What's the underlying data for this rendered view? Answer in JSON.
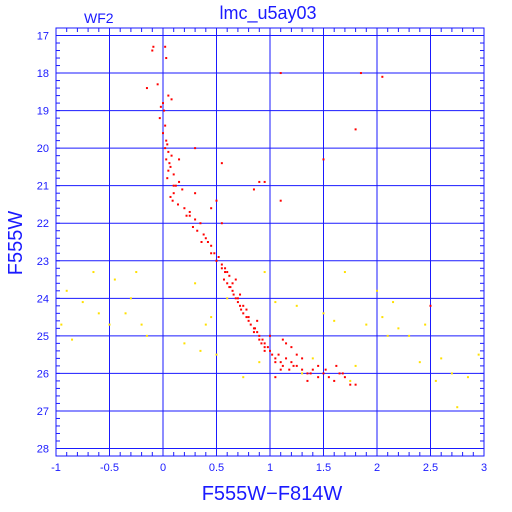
{
  "chart_data": {
    "type": "scatter",
    "title": "lmc_u5ay03",
    "subtitle": "WF2",
    "xlabel": "F555W−F814W",
    "ylabel": "F555W",
    "xlim": [
      -1,
      3
    ],
    "ylim": [
      28.2,
      16.8
    ],
    "y_inverted": true,
    "xticks": [
      -1,
      -0.5,
      0,
      0.5,
      1,
      1.5,
      2,
      2.5,
      3
    ],
    "xtick_labels": [
      "-1",
      "-0.5",
      "0",
      "0.5",
      "1",
      "1.5",
      "2",
      "2.5",
      "3"
    ],
    "yticks": [
      17,
      18,
      19,
      20,
      21,
      22,
      23,
      24,
      25,
      26,
      27,
      28
    ],
    "ytick_labels": [
      "17",
      "18",
      "19",
      "20",
      "21",
      "22",
      "23",
      "24",
      "25",
      "26",
      "27",
      "28"
    ],
    "grid": true,
    "colors": {
      "axes": "#1a1aff",
      "grid": "#1a1aff",
      "main_points": "#ff0000",
      "faint_points": "#ffe000"
    },
    "series": [
      {
        "color": "#ff0000",
        "x": [
          -0.1,
          -0.09,
          0.02,
          0.03,
          -0.15,
          -0.05,
          0.05,
          0.08,
          0.0,
          -0.02,
          0.01,
          -0.03,
          0.02,
          0.0,
          0.03,
          0.02,
          0.05,
          0.04,
          0.03,
          0.06,
          0.08,
          0.05,
          0.07,
          0.1,
          0.04,
          0.15,
          0.12,
          0.1,
          0.18,
          0.07,
          0.09,
          0.14,
          0.2,
          0.25,
          0.22,
          0.3,
          0.35,
          0.28,
          0.32,
          0.38,
          0.4,
          0.42,
          0.45,
          0.36,
          0.48,
          0.5,
          0.52,
          0.55,
          0.58,
          0.6,
          0.62,
          0.57,
          0.6,
          0.63,
          0.65,
          0.66,
          0.68,
          0.7,
          0.72,
          0.73,
          0.75,
          0.78,
          0.8,
          0.82,
          0.85,
          0.88,
          0.9,
          0.93,
          0.95,
          0.98,
          1.0,
          1.02,
          1.05,
          1.08,
          1.1,
          1.12,
          1.15,
          1.18,
          1.2,
          1.25,
          1.3,
          1.35,
          1.4,
          1.45,
          1.5,
          1.55,
          1.6,
          1.65,
          1.7,
          1.75,
          0.85,
          0.9,
          0.95,
          1.0,
          0.7,
          0.75,
          0.8,
          1.15,
          1.25,
          0.55,
          0.5,
          0.65,
          0.45,
          1.1,
          1.3,
          1.45,
          0.72,
          0.68,
          0.62,
          0.58,
          1.05,
          1.2,
          1.38,
          1.52,
          0.92,
          0.86,
          0.78,
          1.12,
          1.22,
          1.35,
          1.05,
          0.95,
          0.88,
          1.68,
          1.8,
          1.62,
          0.15,
          0.25,
          0.3,
          0.5,
          0.55,
          0.45,
          0.85,
          0.95,
          1.1,
          1.8,
          2.05,
          1.85,
          0.55,
          0.3,
          0.1,
          1.1,
          1.5,
          0.9,
          2.5
        ],
        "y": [
          17.4,
          17.3,
          17.3,
          17.6,
          18.4,
          18.3,
          18.6,
          18.7,
          18.8,
          18.9,
          19.0,
          19.2,
          19.4,
          19.6,
          19.8,
          20.0,
          20.1,
          19.9,
          20.3,
          20.4,
          20.2,
          20.6,
          20.5,
          20.7,
          20.8,
          20.9,
          21.0,
          21.2,
          21.1,
          21.3,
          21.4,
          21.5,
          21.6,
          21.7,
          21.8,
          21.9,
          22.0,
          22.1,
          22.2,
          22.3,
          22.4,
          22.5,
          22.6,
          22.5,
          22.8,
          23.0,
          22.9,
          23.1,
          23.2,
          23.3,
          23.4,
          23.5,
          23.6,
          23.7,
          23.8,
          23.9,
          24.0,
          24.1,
          24.2,
          24.3,
          24.4,
          24.5,
          24.6,
          24.7,
          24.8,
          24.9,
          25.0,
          25.1,
          25.2,
          25.3,
          25.4,
          25.5,
          25.6,
          25.5,
          25.7,
          25.8,
          25.6,
          25.9,
          25.7,
          25.8,
          25.9,
          26.0,
          25.9,
          26.1,
          26.0,
          26.1,
          26.2,
          26.0,
          26.1,
          26.3,
          24.9,
          25.1,
          25.3,
          25.0,
          24.0,
          24.2,
          24.5,
          25.2,
          25.5,
          23.2,
          23.0,
          23.6,
          22.8,
          25.9,
          25.6,
          25.8,
          23.9,
          23.5,
          23.7,
          23.3,
          25.7,
          25.3,
          26.0,
          25.9,
          25.2,
          24.8,
          24.3,
          25.1,
          25.8,
          26.2,
          26.1,
          25.4,
          24.6,
          26.0,
          26.3,
          25.8,
          20.3,
          21.8,
          21.2,
          21.4,
          22.0,
          21.6,
          21.1,
          20.9,
          21.4,
          19.5,
          18.1,
          18.0,
          20.4,
          20.0,
          21.0,
          18.0,
          20.3,
          20.9,
          24.2
        ],
        "values_approx": true
      },
      {
        "color": "#ffe000",
        "x": [
          -0.95,
          -0.85,
          -0.75,
          -0.6,
          -0.5,
          -0.45,
          -0.35,
          -0.25,
          -0.2,
          -0.15,
          0.3,
          0.35,
          0.4,
          0.5,
          0.6,
          0.95,
          1.05,
          1.25,
          1.4,
          1.5,
          1.6,
          1.7,
          1.8,
          1.9,
          2.05,
          2.1,
          2.2,
          2.3,
          2.45,
          2.55,
          2.6,
          2.7,
          2.85,
          2.95,
          -0.9,
          -0.65,
          -0.3,
          0.2,
          0.45,
          0.75,
          1.3,
          1.75,
          2.0,
          2.4,
          2.75,
          0.9,
          2.15
        ],
        "y": [
          24.7,
          25.1,
          24.1,
          24.4,
          24.7,
          23.5,
          24.4,
          23.3,
          24.7,
          25.0,
          23.6,
          25.4,
          24.7,
          25.5,
          24.0,
          23.3,
          24.1,
          24.2,
          25.6,
          24.4,
          24.6,
          23.3,
          25.8,
          24.7,
          24.5,
          25.0,
          24.8,
          25.0,
          24.7,
          26.2,
          25.6,
          26.0,
          26.1,
          25.5,
          23.8,
          23.3,
          24.0,
          25.2,
          24.5,
          26.1,
          26.0,
          26.2,
          23.8,
          25.7,
          26.9,
          25.7,
          24.1
        ],
        "values_approx": true
      }
    ]
  }
}
